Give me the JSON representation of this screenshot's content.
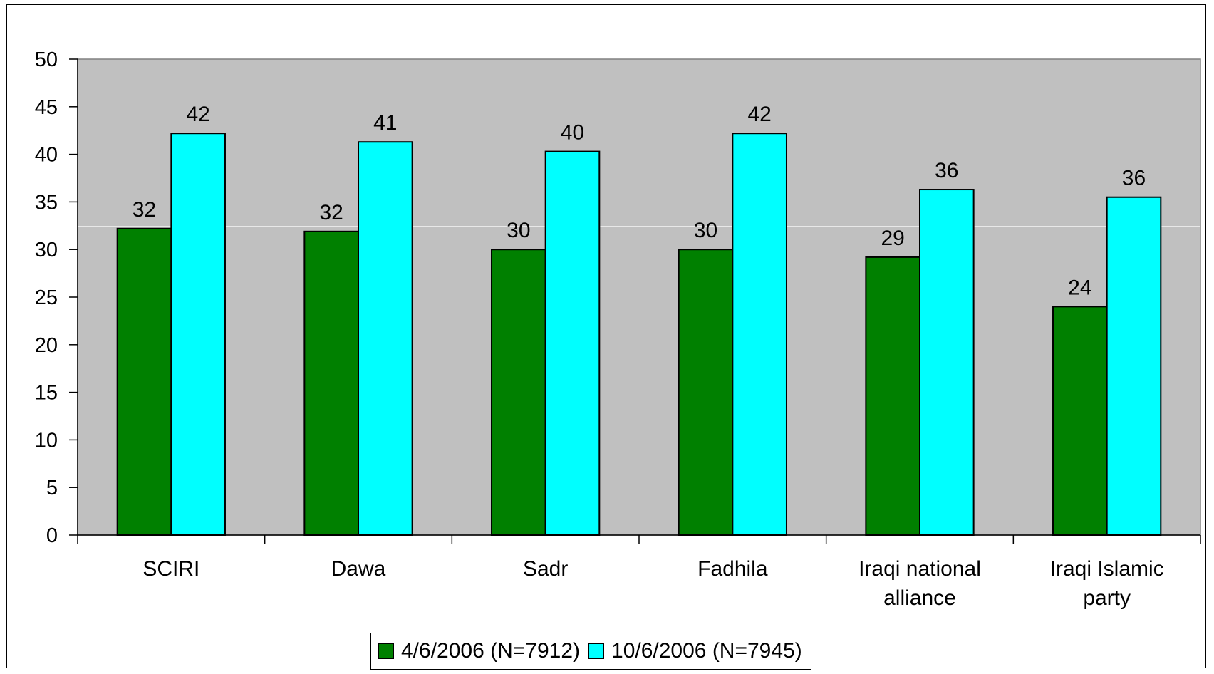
{
  "chart_data": {
    "type": "bar",
    "categories": [
      [
        "SCIRI"
      ],
      [
        "Dawa"
      ],
      [
        "Sadr"
      ],
      [
        "Fadhila"
      ],
      [
        "Iraqi national",
        "alliance"
      ],
      [
        "Iraqi Islamic",
        "party"
      ]
    ],
    "series": [
      {
        "name": "4/6/2006 (N=7912)",
        "color": "#008000",
        "values": [
          32.2,
          31.9,
          30,
          30,
          29.2,
          24
        ],
        "labels": [
          "32",
          "32",
          "30",
          "30",
          "29",
          "24"
        ]
      },
      {
        "name": "10/6/2006 (N=7945)",
        "color": "#00FFFF",
        "values": [
          42.2,
          41.3,
          40.3,
          42.2,
          36.3,
          35.5
        ],
        "labels": [
          "42",
          "41",
          "40",
          "42",
          "36",
          "36"
        ]
      }
    ],
    "ylim": [
      0,
      50
    ],
    "yticks": [
      "0",
      "5",
      "10",
      "15",
      "20",
      "25",
      "30",
      "35",
      "40",
      "45",
      "50"
    ],
    "plot_background": "#C0C0C0",
    "reference_line": 32.4,
    "legend_position": "bottom"
  }
}
